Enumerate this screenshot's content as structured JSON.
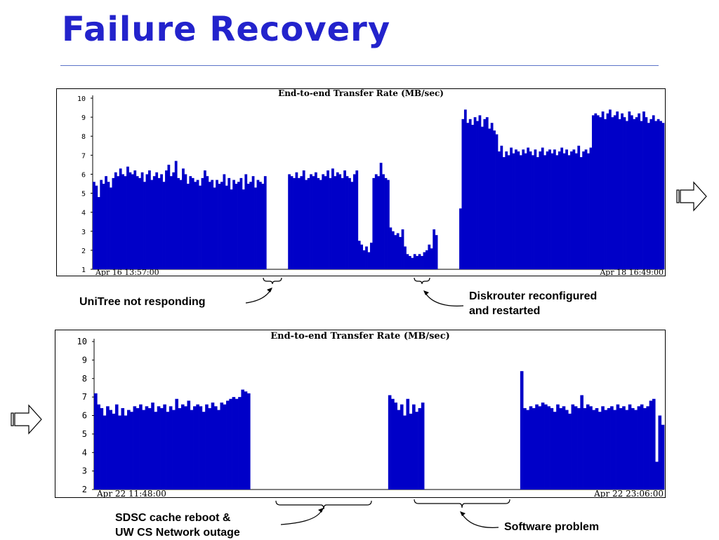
{
  "slide": {
    "title": "Failure Recovery"
  },
  "chart_data": [
    {
      "type": "bar",
      "title": "End-to-end Transfer Rate (MB/sec)",
      "xlabel": "",
      "ylabel": "",
      "ylim": [
        1,
        10
      ],
      "yticks": [
        1,
        2,
        3,
        4,
        5,
        6,
        7,
        8,
        9,
        10
      ],
      "x_start_label": "Apr 16 13:57:00",
      "x_end_label": "Apr 18 16:49:00",
      "color": "#0000c8",
      "grid": false,
      "values": [
        5.6,
        5.4,
        4.8,
        5.7,
        5.5,
        5.9,
        5.6,
        5.3,
        5.8,
        6.1,
        5.9,
        6.3,
        6.0,
        5.9,
        6.4,
        6.1,
        6.0,
        6.2,
        5.9,
        5.8,
        6.1,
        5.6,
        6.0,
        6.2,
        5.7,
        5.9,
        6.1,
        5.8,
        6.0,
        5.6,
        6.2,
        6.5,
        5.9,
        6.1,
        6.7,
        5.8,
        5.7,
        6.3,
        6.0,
        5.5,
        5.9,
        5.8,
        5.6,
        5.7,
        5.4,
        5.8,
        6.2,
        5.9,
        5.6,
        5.7,
        5.3,
        5.7,
        5.5,
        5.6,
        6.0,
        5.4,
        5.8,
        5.2,
        5.7,
        5.5,
        5.6,
        5.8,
        5.2,
        6.0,
        5.5,
        5.6,
        5.9,
        5.3,
        5.7,
        5.6,
        5.5,
        5.9,
        null,
        null,
        null,
        null,
        null,
        null,
        null,
        null,
        null,
        6.0,
        5.9,
        5.8,
        6.1,
        5.8,
        5.9,
        6.2,
        5.7,
        5.8,
        6.0,
        5.9,
        6.1,
        5.8,
        5.7,
        6.0,
        5.9,
        6.2,
        5.8,
        6.3,
        5.9,
        6.1,
        6.0,
        5.8,
        6.2,
        5.9,
        5.8,
        5.6,
        6.0,
        6.2,
        2.5,
        2.3,
        2.0,
        2.2,
        1.9,
        2.4,
        5.8,
        6.0,
        5.9,
        6.6,
        6.0,
        5.8,
        5.7,
        3.2,
        3.0,
        2.8,
        2.9,
        2.7,
        3.1,
        2.2,
        1.8,
        1.7,
        1.6,
        1.8,
        1.7,
        1.8,
        1.7,
        1.9,
        2.0,
        2.3,
        2.1,
        3.1,
        2.8,
        null,
        null,
        null,
        null,
        null,
        null,
        null,
        null,
        null,
        4.2,
        8.9,
        9.4,
        8.7,
        8.9,
        8.6,
        9.0,
        8.8,
        9.1,
        8.5,
        8.9,
        9.0,
        8.4,
        8.7,
        8.3,
        8.1,
        7.2,
        7.5,
        6.9,
        7.2,
        7.0,
        7.4,
        7.1,
        7.3,
        7.2,
        7.0,
        7.3,
        7.1,
        7.4,
        7.2,
        7.0,
        7.3,
        6.9,
        7.2,
        7.4,
        7.0,
        7.2,
        7.3,
        7.1,
        7.3,
        7.0,
        7.2,
        7.4,
        7.1,
        7.3,
        7.0,
        7.2,
        7.3,
        7.1,
        7.5,
        6.9,
        7.2,
        7.3,
        7.1,
        7.4,
        9.1,
        9.2,
        9.1,
        9.0,
        9.3,
        8.9,
        9.2,
        9.4,
        9.0,
        9.1,
        9.3,
        8.9,
        9.2,
        9.0,
        8.8,
        9.3,
        9.1,
        8.9,
        9.0,
        9.2,
        8.8,
        9.3,
        9.0,
        8.7,
        8.9,
        9.1,
        8.8,
        8.9,
        8.8,
        8.7
      ]
    },
    {
      "type": "bar",
      "title": "End-to-end Transfer Rate (MB/sec)",
      "xlabel": "",
      "ylabel": "",
      "ylim": [
        2,
        10
      ],
      "yticks": [
        2,
        3,
        4,
        5,
        6,
        7,
        8,
        9,
        10
      ],
      "x_start_label": "Apr 22 11:48:00",
      "x_end_label": "Apr 22 23:06:00",
      "color": "#0000c8",
      "grid": false,
      "values": [
        7.2,
        6.6,
        6.4,
        6.0,
        6.5,
        6.3,
        6.1,
        6.6,
        6.0,
        6.4,
        6.0,
        6.3,
        6.2,
        6.5,
        6.4,
        6.6,
        6.3,
        6.5,
        6.4,
        6.7,
        6.2,
        6.5,
        6.4,
        6.6,
        6.2,
        6.5,
        6.3,
        6.9,
        6.4,
        6.6,
        6.5,
        6.8,
        6.3,
        6.5,
        6.6,
        6.5,
        6.2,
        6.6,
        6.4,
        6.7,
        6.5,
        6.3,
        6.7,
        6.6,
        6.8,
        6.9,
        7.0,
        6.9,
        7.0,
        7.4,
        7.3,
        7.2,
        null,
        null,
        null,
        null,
        null,
        null,
        null,
        null,
        null,
        null,
        null,
        null,
        null,
        null,
        null,
        null,
        null,
        null,
        null,
        null,
        null,
        null,
        null,
        null,
        null,
        null,
        null,
        null,
        null,
        null,
        null,
        null,
        null,
        null,
        null,
        null,
        null,
        null,
        null,
        null,
        null,
        null,
        null,
        null,
        null,
        null,
        7.1,
        6.9,
        6.7,
        6.3,
        6.6,
        6.0,
        6.9,
        6.1,
        6.6,
        6.2,
        6.4,
        6.7,
        null,
        null,
        null,
        null,
        null,
        null,
        null,
        null,
        null,
        null,
        null,
        null,
        null,
        null,
        null,
        null,
        null,
        null,
        null,
        null,
        null,
        null,
        null,
        null,
        null,
        null,
        null,
        null,
        null,
        null,
        null,
        null,
        8.4,
        6.4,
        6.3,
        6.5,
        6.4,
        6.6,
        6.5,
        6.7,
        6.6,
        6.5,
        6.4,
        6.2,
        6.6,
        6.4,
        6.5,
        6.3,
        6.1,
        6.6,
        6.5,
        6.4,
        7.1,
        6.4,
        6.6,
        6.5,
        6.3,
        6.4,
        6.2,
        6.5,
        6.3,
        6.4,
        6.5,
        6.3,
        6.6,
        6.4,
        6.5,
        6.3,
        6.6,
        6.4,
        6.3,
        6.5,
        6.6,
        6.4,
        6.5,
        6.8,
        6.9,
        3.5,
        6.0,
        5.5
      ]
    }
  ],
  "annotations": {
    "unitree": "UniTree not responding",
    "diskrouter_line1": "Diskrouter reconfigured",
    "diskrouter_line2": "and restarted",
    "sdsc_line1": "SDSC cache reboot  &",
    "sdsc_line2": "UW CS Network outage",
    "software": "Software problem"
  },
  "icons": {
    "continue_right": "right-arrow-icon",
    "continue_left": "right-arrow-icon"
  }
}
